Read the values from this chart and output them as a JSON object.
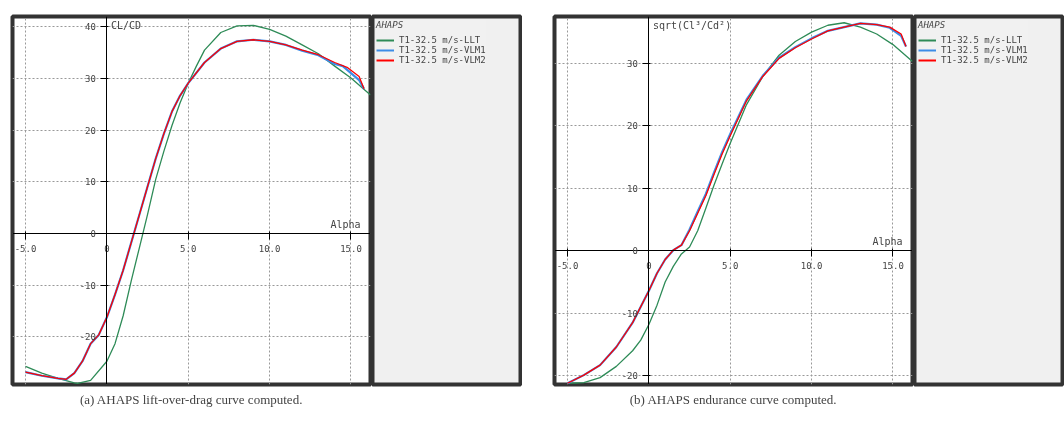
{
  "chart_data": [
    {
      "type": "line",
      "ylabel": "CL/CD",
      "xlabel": "Alpha",
      "legend_title": "AHAPS",
      "legend": "right",
      "grid": true,
      "line_style": "solid",
      "annotations": [
        "(a) AHAPS lift-over-drag curve computed."
      ],
      "xlim": [
        -5.8,
        16.2
      ],
      "ylim": [
        -29.2,
        42
      ],
      "xticks": [
        {
          "value": -5,
          "label": "-5.0"
        },
        0,
        {
          "value": 5,
          "label": "5.0"
        },
        {
          "value": 10,
          "label": "10.0"
        },
        {
          "value": 15,
          "label": "15.0"
        }
      ],
      "yticks": [
        -20,
        -10,
        0,
        10,
        20,
        30,
        40
      ],
      "series": [
        {
          "name": "T1-32.5 m/s-LLT",
          "color": "#2e8b57",
          "x": [
            -5,
            -4,
            -3,
            -2,
            -1.8,
            -1,
            0,
            0.5,
            1,
            1.5,
            2,
            2.5,
            3,
            3.5,
            4,
            4.5,
            5,
            5.5,
            6,
            7,
            8,
            9,
            10,
            11,
            12,
            13,
            14,
            15,
            16.2
          ],
          "values": [
            -25.7,
            -27,
            -28,
            -28.9,
            -29,
            -28.4,
            -24.7,
            -21.3,
            -15.9,
            -9.1,
            -2.7,
            3.7,
            10.5,
            15.9,
            20.9,
            25.3,
            29.1,
            32.4,
            35.5,
            38.9,
            40.2,
            40.3,
            39.5,
            38.2,
            36.5,
            34.8,
            32.4,
            30.1,
            26.8
          ]
        },
        {
          "name": "T1-32.5 m/s-VLM1",
          "color": "#3c8ce6",
          "x": [
            -5,
            -4,
            -3,
            -2.5,
            -2,
            -1.5,
            -1,
            -0.5,
            0,
            0.5,
            1,
            1.5,
            2,
            2.5,
            3,
            3.5,
            4,
            4.5,
            5,
            6,
            7,
            8,
            9,
            10,
            11,
            12,
            13,
            14,
            14.5,
            15.5,
            15.8
          ],
          "values": [
            -26.8,
            -27.5,
            -28,
            -28.2,
            -27,
            -24.7,
            -21.3,
            -19.6,
            -16.2,
            -11.8,
            -7.1,
            -1.7,
            3.7,
            9.1,
            14.5,
            19.3,
            23.6,
            26.7,
            29.1,
            33.1,
            35.8,
            37.2,
            37.5,
            37.2,
            36.5,
            35.4,
            34.5,
            32.8,
            32.4,
            29.7,
            28
          ]
        },
        {
          "name": "T1-32.5 m/s-VLM2",
          "color": "#ff0000",
          "x": [
            -5,
            -4,
            -3,
            -2.5,
            -2,
            -1.5,
            -1,
            -0.5,
            0,
            0.5,
            1,
            1.5,
            2,
            2.5,
            3,
            3.5,
            4,
            4.5,
            5,
            6,
            7,
            8,
            9,
            10,
            11,
            12,
            13,
            14,
            14.8,
            15.5,
            15.8
          ],
          "values": [
            -26.8,
            -27.5,
            -28,
            -28.2,
            -27,
            -24.7,
            -21.3,
            -19.6,
            -16.2,
            -11.8,
            -7.1,
            -1.7,
            3.7,
            9.1,
            14.5,
            19.3,
            23.6,
            26.7,
            29.1,
            33.1,
            35.8,
            37.2,
            37.5,
            37.2,
            36.5,
            35.5,
            34.6,
            33.1,
            32.1,
            30.4,
            28
          ]
        }
      ]
    },
    {
      "type": "line",
      "ylabel": "sqrt(Cl³/Cd²)",
      "xlabel": "Alpha",
      "legend_title": "AHAPS",
      "legend": "right",
      "grid": true,
      "line_style": "solid",
      "annotations": [
        "(b) AHAPS endurance curve computed."
      ],
      "xlim": [
        -5.8,
        16.2
      ],
      "ylim": [
        -21.4,
        37.5
      ],
      "xticks": [
        {
          "value": -5,
          "label": "-5.0"
        },
        0,
        {
          "value": 5,
          "label": "5.0"
        },
        {
          "value": 10,
          "label": "10.0"
        },
        {
          "value": 15,
          "label": "15.0"
        }
      ],
      "yticks": [
        -20,
        -10,
        0,
        10,
        20,
        30
      ],
      "series": [
        {
          "name": "T1-32.5 m/s-LLT",
          "color": "#2e8b57",
          "x": [
            -5,
            -4,
            -3,
            -2,
            -1,
            -0.5,
            0,
            0.5,
            1,
            1.5,
            2,
            2.5,
            3,
            3.5,
            4,
            4.5,
            5,
            6,
            7,
            8,
            9,
            10,
            11,
            12,
            13,
            14,
            15,
            16.2
          ],
          "values": [
            -21.2,
            -21.1,
            -20.3,
            -18.5,
            -16,
            -14.3,
            -11.8,
            -8.7,
            -5,
            -2.5,
            -0.5,
            0.6,
            3.2,
            6.8,
            10.5,
            13.9,
            17.2,
            23.4,
            27.9,
            31.3,
            33.5,
            35,
            36.1,
            36.5,
            35.8,
            34.7,
            33,
            30.3
          ]
        },
        {
          "name": "T1-32.5 m/s-VLM1",
          "color": "#3c8ce6",
          "x": [
            -5,
            -4,
            -3,
            -2,
            -1,
            0,
            0.5,
            1,
            1.5,
            2,
            2.5,
            3,
            3.5,
            4,
            4.5,
            5,
            6,
            7,
            8,
            9,
            10,
            11,
            12,
            13,
            14,
            14.8,
            15.5,
            15.8
          ],
          "values": [
            -21.2,
            -19.9,
            -18.3,
            -15.4,
            -11.5,
            -6.4,
            -3.6,
            -1.4,
            0.1,
            0.9,
            3.4,
            6.3,
            9.1,
            12.5,
            15.8,
            18.7,
            24.2,
            28,
            30.9,
            32.6,
            34,
            35.2,
            35.8,
            36.4,
            36.2,
            35.7,
            34.4,
            32.7
          ]
        },
        {
          "name": "T1-32.5 m/s-VLM2",
          "color": "#ff0000",
          "x": [
            -5,
            -4,
            -3,
            -2,
            -1,
            0,
            0.5,
            1,
            1.5,
            2,
            2.5,
            3,
            3.5,
            4,
            4.5,
            5,
            6,
            7,
            8,
            9,
            10,
            11,
            12,
            13,
            14,
            14.8,
            15.5,
            15.8
          ],
          "values": [
            -21.2,
            -19.9,
            -18.3,
            -15.4,
            -11.5,
            -6.4,
            -3.6,
            -1.4,
            0.1,
            0.9,
            3.2,
            6,
            8.8,
            12.2,
            15.5,
            18.4,
            24,
            27.9,
            30.8,
            32.5,
            33.9,
            35.2,
            35.8,
            36.4,
            36.2,
            35.8,
            34.7,
            32.7
          ]
        }
      ]
    }
  ]
}
